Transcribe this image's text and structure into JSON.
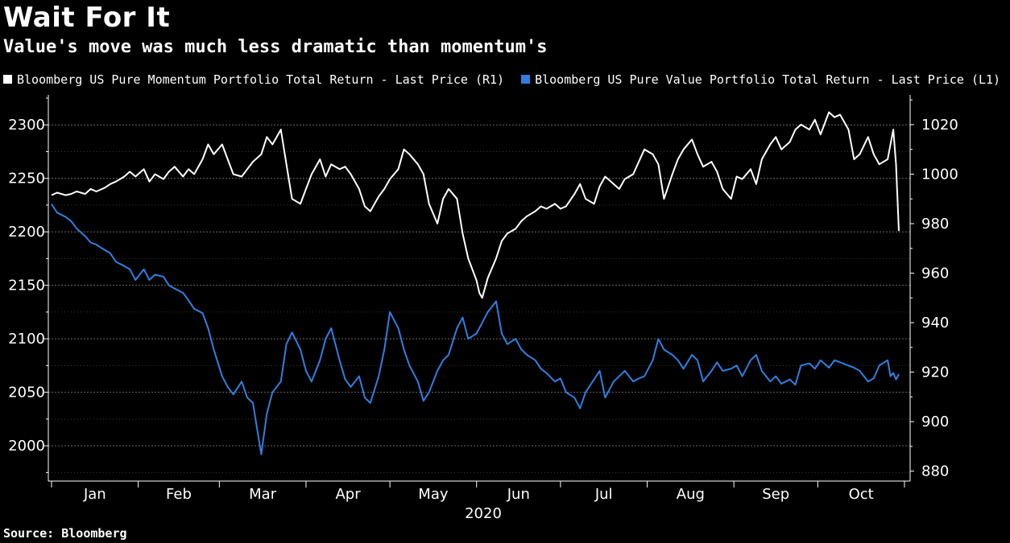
{
  "title": "Wait For It",
  "subtitle": "Value's move was much less dramatic than momentum's",
  "source": "Source: Bloomberg",
  "colors": {
    "momentum": "#ffffff",
    "value": "#2f7fe0",
    "grid": "#6a6a6a",
    "axis": "#ffffff",
    "background": "#000000"
  },
  "chart_data": {
    "type": "line",
    "title": "Wait For It",
    "subtitle": "Value's move was much less dramatic than momentum's",
    "x_labels": [
      "Jan",
      "Feb",
      "Mar",
      "Apr",
      "May",
      "Jun",
      "Jul",
      "Aug",
      "Sep",
      "Oct"
    ],
    "x_year_label": "2020",
    "x_range": [
      "2020-01-01",
      "2020-10-30"
    ],
    "left_axis": {
      "ylim": [
        1967,
        2328
      ],
      "ticks": [
        2000,
        2050,
        2100,
        2150,
        2200,
        2250,
        2300
      ]
    },
    "right_axis": {
      "ylim": [
        876,
        1032
      ],
      "ticks": [
        880,
        900,
        920,
        940,
        960,
        980,
        1000,
        1020
      ]
    },
    "grid": true,
    "legend_position": "top",
    "series": [
      {
        "name": "Bloomberg US Pure Momentum Portfolio Total Return - Last Price (R1)",
        "axis": "right",
        "color": "#ffffff",
        "points": [
          [
            "2020-01-01",
            991.5
          ],
          [
            "2020-01-03",
            992.5
          ],
          [
            "2020-01-06",
            991.5
          ],
          [
            "2020-01-08",
            992.0
          ],
          [
            "2020-01-10",
            993.0
          ],
          [
            "2020-01-13",
            992.0
          ],
          [
            "2020-01-15",
            994.0
          ],
          [
            "2020-01-17",
            993.0
          ],
          [
            "2020-01-20",
            994.5
          ],
          [
            "2020-01-22",
            996.0
          ],
          [
            "2020-01-24",
            997.0
          ],
          [
            "2020-01-27",
            999.0
          ],
          [
            "2020-01-29",
            1001.0
          ],
          [
            "2020-01-31",
            999.0
          ],
          [
            "2020-02-03",
            1002.0
          ],
          [
            "2020-02-05",
            997.0
          ],
          [
            "2020-02-07",
            1000.0
          ],
          [
            "2020-02-10",
            998.0
          ],
          [
            "2020-02-12",
            1001.0
          ],
          [
            "2020-02-14",
            1003.0
          ],
          [
            "2020-02-17",
            999.0
          ],
          [
            "2020-02-19",
            1002.0
          ],
          [
            "2020-02-21",
            1000.0
          ],
          [
            "2020-02-24",
            1006.0
          ],
          [
            "2020-02-26",
            1012.0
          ],
          [
            "2020-02-28",
            1008.0
          ],
          [
            "2020-03-02",
            1012.0
          ],
          [
            "2020-03-04",
            1006.0
          ],
          [
            "2020-03-06",
            1000.0
          ],
          [
            "2020-03-09",
            999.0
          ],
          [
            "2020-03-11",
            1002.0
          ],
          [
            "2020-03-13",
            1005.0
          ],
          [
            "2020-03-16",
            1008.0
          ],
          [
            "2020-03-18",
            1015.0
          ],
          [
            "2020-03-20",
            1012.0
          ],
          [
            "2020-03-23",
            1018.0
          ],
          [
            "2020-03-25",
            1004.0
          ],
          [
            "2020-03-27",
            990.0
          ],
          [
            "2020-03-30",
            988.0
          ],
          [
            "2020-04-01",
            994.0
          ],
          [
            "2020-04-03",
            1000.0
          ],
          [
            "2020-04-06",
            1006.0
          ],
          [
            "2020-04-08",
            999.0
          ],
          [
            "2020-04-10",
            1004.0
          ],
          [
            "2020-04-13",
            1002.0
          ],
          [
            "2020-04-15",
            1003.0
          ],
          [
            "2020-04-17",
            1000.0
          ],
          [
            "2020-04-20",
            994.0
          ],
          [
            "2020-04-22",
            987.0
          ],
          [
            "2020-04-24",
            985.0
          ],
          [
            "2020-04-27",
            991.0
          ],
          [
            "2020-04-29",
            994.0
          ],
          [
            "2020-05-01",
            998.0
          ],
          [
            "2020-05-04",
            1002.0
          ],
          [
            "2020-05-06",
            1010.0
          ],
          [
            "2020-05-08",
            1008.0
          ],
          [
            "2020-05-11",
            1004.0
          ],
          [
            "2020-05-13",
            1000.0
          ],
          [
            "2020-05-15",
            988.0
          ],
          [
            "2020-05-18",
            980.0
          ],
          [
            "2020-05-20",
            990.0
          ],
          [
            "2020-05-22",
            994.0
          ],
          [
            "2020-05-25",
            990.0
          ],
          [
            "2020-05-27",
            976.0
          ],
          [
            "2020-05-29",
            966.0
          ],
          [
            "2020-06-01",
            957.0
          ],
          [
            "2020-06-02",
            952.0
          ],
          [
            "2020-06-03",
            950.0
          ],
          [
            "2020-06-05",
            958.0
          ],
          [
            "2020-06-08",
            966.0
          ],
          [
            "2020-06-10",
            973.0
          ],
          [
            "2020-06-12",
            976.0
          ],
          [
            "2020-06-15",
            978.0
          ],
          [
            "2020-06-17",
            981.0
          ],
          [
            "2020-06-19",
            983.0
          ],
          [
            "2020-06-22",
            985.0
          ],
          [
            "2020-06-24",
            987.0
          ],
          [
            "2020-06-26",
            986.0
          ],
          [
            "2020-06-29",
            988.0
          ],
          [
            "2020-07-01",
            986.0
          ],
          [
            "2020-07-03",
            987.0
          ],
          [
            "2020-07-06",
            992.0
          ],
          [
            "2020-07-08",
            996.0
          ],
          [
            "2020-07-10",
            990.0
          ],
          [
            "2020-07-13",
            988.0
          ],
          [
            "2020-07-15",
            995.0
          ],
          [
            "2020-07-17",
            999.0
          ],
          [
            "2020-07-20",
            996.0
          ],
          [
            "2020-07-22",
            994.0
          ],
          [
            "2020-07-24",
            998.0
          ],
          [
            "2020-07-27",
            1000.0
          ],
          [
            "2020-07-29",
            1005.0
          ],
          [
            "2020-07-31",
            1010.0
          ],
          [
            "2020-08-03",
            1008.0
          ],
          [
            "2020-08-05",
            1004.0
          ],
          [
            "2020-08-07",
            990.0
          ],
          [
            "2020-08-10",
            1000.0
          ],
          [
            "2020-08-12",
            1006.0
          ],
          [
            "2020-08-14",
            1010.0
          ],
          [
            "2020-08-17",
            1014.0
          ],
          [
            "2020-08-19",
            1008.0
          ],
          [
            "2020-08-21",
            1003.0
          ],
          [
            "2020-08-24",
            1005.0
          ],
          [
            "2020-08-26",
            1001.0
          ],
          [
            "2020-08-28",
            994.0
          ],
          [
            "2020-08-31",
            990.0
          ],
          [
            "2020-09-02",
            999.0
          ],
          [
            "2020-09-04",
            998.0
          ],
          [
            "2020-09-07",
            1002.0
          ],
          [
            "2020-09-09",
            996.0
          ],
          [
            "2020-09-11",
            1006.0
          ],
          [
            "2020-09-14",
            1012.0
          ],
          [
            "2020-09-16",
            1015.0
          ],
          [
            "2020-09-18",
            1010.0
          ],
          [
            "2020-09-21",
            1013.0
          ],
          [
            "2020-09-23",
            1018.0
          ],
          [
            "2020-09-25",
            1020.0
          ],
          [
            "2020-09-28",
            1018.0
          ],
          [
            "2020-09-30",
            1022.0
          ],
          [
            "2020-10-02",
            1016.0
          ],
          [
            "2020-10-05",
            1025.0
          ],
          [
            "2020-10-07",
            1023.0
          ],
          [
            "2020-10-09",
            1024.0
          ],
          [
            "2020-10-12",
            1018.0
          ],
          [
            "2020-10-14",
            1006.0
          ],
          [
            "2020-10-16",
            1008.0
          ],
          [
            "2020-10-19",
            1015.0
          ],
          [
            "2020-10-21",
            1008.0
          ],
          [
            "2020-10-23",
            1004.0
          ],
          [
            "2020-10-26",
            1006.0
          ],
          [
            "2020-10-28",
            1018.0
          ],
          [
            "2020-10-29",
            1004.0
          ],
          [
            "2020-10-30",
            977.0
          ]
        ]
      },
      {
        "name": "Bloomberg US Pure Value Portfolio Total Return - Last Price (L1)",
        "axis": "left",
        "color": "#2f7fe0",
        "points": [
          [
            "2020-01-01",
            2226
          ],
          [
            "2020-01-03",
            2218
          ],
          [
            "2020-01-06",
            2214
          ],
          [
            "2020-01-08",
            2210
          ],
          [
            "2020-01-10",
            2203
          ],
          [
            "2020-01-13",
            2196
          ],
          [
            "2020-01-15",
            2190
          ],
          [
            "2020-01-17",
            2188
          ],
          [
            "2020-01-20",
            2183
          ],
          [
            "2020-01-22",
            2180
          ],
          [
            "2020-01-24",
            2172
          ],
          [
            "2020-01-27",
            2168
          ],
          [
            "2020-01-29",
            2165
          ],
          [
            "2020-01-31",
            2155
          ],
          [
            "2020-02-03",
            2165
          ],
          [
            "2020-02-05",
            2155
          ],
          [
            "2020-02-07",
            2160
          ],
          [
            "2020-02-10",
            2158
          ],
          [
            "2020-02-12",
            2150
          ],
          [
            "2020-02-14",
            2147
          ],
          [
            "2020-02-17",
            2143
          ],
          [
            "2020-02-19",
            2136
          ],
          [
            "2020-02-21",
            2128
          ],
          [
            "2020-02-24",
            2124
          ],
          [
            "2020-02-26",
            2110
          ],
          [
            "2020-02-28",
            2090
          ],
          [
            "2020-03-02",
            2065
          ],
          [
            "2020-03-04",
            2055
          ],
          [
            "2020-03-06",
            2048
          ],
          [
            "2020-03-09",
            2060
          ],
          [
            "2020-03-11",
            2045
          ],
          [
            "2020-03-13",
            2040
          ],
          [
            "2020-03-16",
            1992
          ],
          [
            "2020-03-18",
            2030
          ],
          [
            "2020-03-20",
            2050
          ],
          [
            "2020-03-23",
            2060
          ],
          [
            "2020-03-25",
            2095
          ],
          [
            "2020-03-27",
            2106
          ],
          [
            "2020-03-30",
            2090
          ],
          [
            "2020-04-01",
            2070
          ],
          [
            "2020-04-03",
            2060
          ],
          [
            "2020-04-06",
            2080
          ],
          [
            "2020-04-08",
            2100
          ],
          [
            "2020-04-10",
            2110
          ],
          [
            "2020-04-13",
            2080
          ],
          [
            "2020-04-15",
            2062
          ],
          [
            "2020-04-17",
            2055
          ],
          [
            "2020-04-20",
            2065
          ],
          [
            "2020-04-22",
            2045
          ],
          [
            "2020-04-24",
            2040
          ],
          [
            "2020-04-27",
            2065
          ],
          [
            "2020-04-29",
            2090
          ],
          [
            "2020-05-01",
            2125
          ],
          [
            "2020-05-04",
            2110
          ],
          [
            "2020-05-06",
            2090
          ],
          [
            "2020-05-08",
            2075
          ],
          [
            "2020-05-11",
            2060
          ],
          [
            "2020-05-13",
            2042
          ],
          [
            "2020-05-15",
            2050
          ],
          [
            "2020-05-18",
            2070
          ],
          [
            "2020-05-20",
            2080
          ],
          [
            "2020-05-22",
            2085
          ],
          [
            "2020-05-25",
            2110
          ],
          [
            "2020-05-27",
            2120
          ],
          [
            "2020-05-29",
            2100
          ],
          [
            "2020-06-01",
            2105
          ],
          [
            "2020-06-03",
            2115
          ],
          [
            "2020-06-05",
            2125
          ],
          [
            "2020-06-08",
            2135
          ],
          [
            "2020-06-10",
            2105
          ],
          [
            "2020-06-12",
            2095
          ],
          [
            "2020-06-15",
            2100
          ],
          [
            "2020-06-17",
            2090
          ],
          [
            "2020-06-19",
            2085
          ],
          [
            "2020-06-22",
            2080
          ],
          [
            "2020-06-24",
            2072
          ],
          [
            "2020-06-26",
            2068
          ],
          [
            "2020-06-29",
            2060
          ],
          [
            "2020-07-01",
            2063
          ],
          [
            "2020-07-03",
            2050
          ],
          [
            "2020-07-06",
            2045
          ],
          [
            "2020-07-08",
            2035
          ],
          [
            "2020-07-10",
            2050
          ],
          [
            "2020-07-13",
            2062
          ],
          [
            "2020-07-15",
            2070
          ],
          [
            "2020-07-17",
            2045
          ],
          [
            "2020-07-20",
            2060
          ],
          [
            "2020-07-22",
            2065
          ],
          [
            "2020-07-24",
            2070
          ],
          [
            "2020-07-27",
            2060
          ],
          [
            "2020-07-29",
            2063
          ],
          [
            "2020-07-31",
            2065
          ],
          [
            "2020-08-03",
            2080
          ],
          [
            "2020-08-05",
            2100
          ],
          [
            "2020-08-07",
            2090
          ],
          [
            "2020-08-10",
            2085
          ],
          [
            "2020-08-12",
            2080
          ],
          [
            "2020-08-14",
            2072
          ],
          [
            "2020-08-17",
            2085
          ],
          [
            "2020-08-19",
            2080
          ],
          [
            "2020-08-21",
            2060
          ],
          [
            "2020-08-24",
            2070
          ],
          [
            "2020-08-26",
            2078
          ],
          [
            "2020-08-28",
            2070
          ],
          [
            "2020-08-31",
            2072
          ],
          [
            "2020-09-02",
            2075
          ],
          [
            "2020-09-04",
            2065
          ],
          [
            "2020-09-07",
            2080
          ],
          [
            "2020-09-09",
            2085
          ],
          [
            "2020-09-11",
            2070
          ],
          [
            "2020-09-14",
            2060
          ],
          [
            "2020-09-16",
            2065
          ],
          [
            "2020-09-18",
            2058
          ],
          [
            "2020-09-21",
            2062
          ],
          [
            "2020-09-23",
            2057
          ],
          [
            "2020-09-25",
            2075
          ],
          [
            "2020-09-28",
            2077
          ],
          [
            "2020-09-30",
            2072
          ],
          [
            "2020-10-02",
            2080
          ],
          [
            "2020-10-05",
            2073
          ],
          [
            "2020-10-07",
            2080
          ],
          [
            "2020-10-09",
            2078
          ],
          [
            "2020-10-12",
            2075
          ],
          [
            "2020-10-14",
            2073
          ],
          [
            "2020-10-16",
            2070
          ],
          [
            "2020-10-19",
            2060
          ],
          [
            "2020-10-21",
            2063
          ],
          [
            "2020-10-23",
            2075
          ],
          [
            "2020-10-26",
            2080
          ],
          [
            "2020-10-27",
            2065
          ],
          [
            "2020-10-28",
            2068
          ],
          [
            "2020-10-29",
            2062
          ],
          [
            "2020-10-30",
            2067
          ]
        ]
      }
    ]
  }
}
